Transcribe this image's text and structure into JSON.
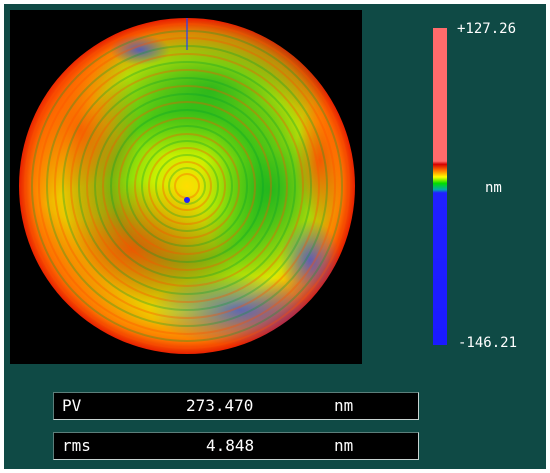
{
  "surface_map": {
    "description_icon": "surface-height-map-icon"
  },
  "scale": {
    "max_label": "+127.26",
    "unit_label": "nm",
    "min_label": "-146.21"
  },
  "readouts": [
    {
      "name": "PV",
      "value": "273.470",
      "unit": "nm"
    },
    {
      "name": "rms",
      "value": "4.848",
      "unit": "nm"
    }
  ],
  "colors": {
    "background": "#0f4a45",
    "high": "#ff6b6b",
    "low": "#1a1aff"
  }
}
